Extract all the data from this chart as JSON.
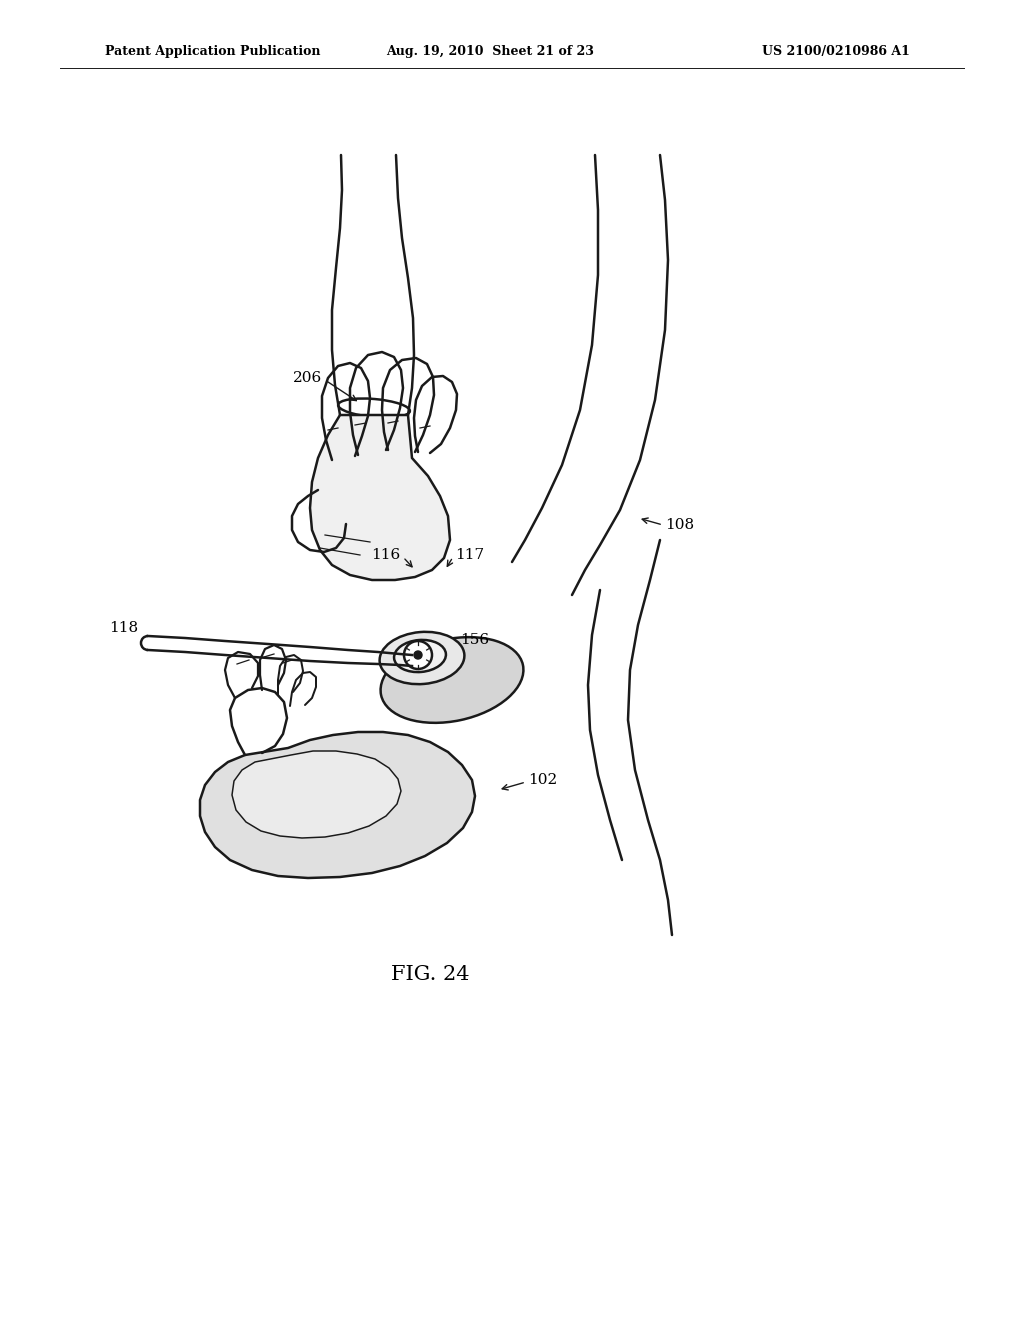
{
  "background_color": "#ffffff",
  "header_left": "Patent Application Publication",
  "header_middle": "Aug. 19, 2010  Sheet 21 of 23",
  "header_right": "US 2100/0210986 A1",
  "figure_label": "FIG. 24",
  "text_color": "#000000",
  "line_color": "#1a1a1a",
  "line_width": 1.8
}
